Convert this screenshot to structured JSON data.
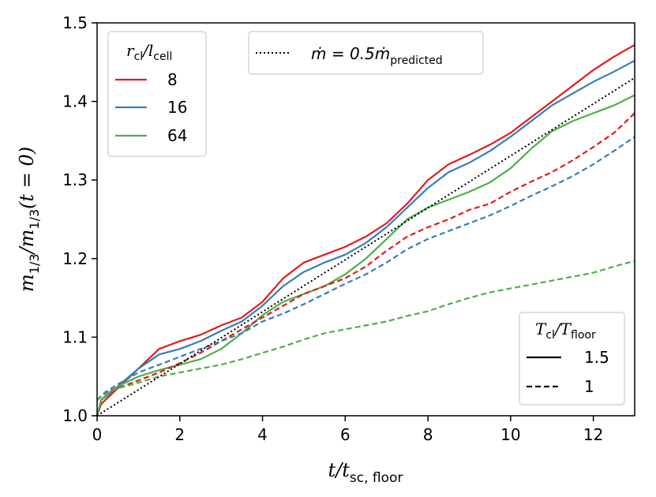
{
  "chart_data": {
    "type": "line",
    "xlabel": "t/t_sc,floor",
    "ylabel": "m_1/3/m_1/3(t=0)",
    "xlim": [
      0,
      13
    ],
    "ylim": [
      1.0,
      1.5
    ],
    "xticks": [
      0,
      2,
      4,
      6,
      8,
      10,
      12
    ],
    "xtick_labels": [
      "0",
      "2",
      "4",
      "6",
      "8",
      "10",
      "12"
    ],
    "yticks": [
      1.0,
      1.1,
      1.2,
      1.3,
      1.4,
      1.5
    ],
    "ytick_labels": [
      "1.0",
      "1.1",
      "1.2",
      "1.3",
      "1.4",
      "1.5"
    ],
    "colors": {
      "r8": "#e41a1c",
      "r16": "#377eb8",
      "r64": "#4daf4a",
      "ref": "#000000"
    },
    "legend_resolution": {
      "title_main": "r",
      "title_sub1": "cl",
      "title_sep": "/l",
      "title_sub2": "cell",
      "entries": [
        {
          "label": "8",
          "color": "#e41a1c"
        },
        {
          "label": "16",
          "color": "#377eb8"
        },
        {
          "label": "64",
          "color": "#4daf4a"
        }
      ]
    },
    "legend_reference": {
      "lhs": "ṁ = 0.5ṁ",
      "sub": "predicted"
    },
    "legend_temperature": {
      "title_main": "T",
      "title_sub1": "cl",
      "title_sep": "/T",
      "title_sub2": "floor",
      "entries": [
        {
          "label": "1.5",
          "style": "solid"
        },
        {
          "label": "1",
          "style": "dashed"
        }
      ]
    },
    "series": [
      {
        "name": "r8 T1.5",
        "color": "#e41a1c",
        "style": "solid",
        "x": [
          0,
          0.1,
          0.3,
          0.6,
          1.0,
          1.5,
          2.0,
          2.5,
          3.0,
          3.5,
          4.0,
          4.5,
          5.0,
          5.5,
          6.0,
          6.5,
          7.0,
          7.5,
          8.0,
          8.5,
          9.0,
          9.5,
          10.0,
          10.5,
          11.0,
          11.5,
          12.0,
          12.5,
          13.0
        ],
        "y": [
          1.0,
          1.015,
          1.025,
          1.04,
          1.06,
          1.085,
          1.095,
          1.103,
          1.115,
          1.125,
          1.145,
          1.175,
          1.195,
          1.205,
          1.215,
          1.228,
          1.245,
          1.27,
          1.3,
          1.32,
          1.332,
          1.345,
          1.36,
          1.38,
          1.4,
          1.42,
          1.44,
          1.457,
          1.472
        ]
      },
      {
        "name": "r16 T1.5",
        "color": "#377eb8",
        "style": "solid",
        "x": [
          0,
          0.1,
          0.3,
          0.6,
          1.0,
          1.5,
          2.0,
          2.5,
          3.0,
          3.5,
          4.0,
          4.5,
          5.0,
          5.5,
          6.0,
          6.5,
          7.0,
          7.5,
          8.0,
          8.5,
          9.0,
          9.5,
          10.0,
          10.5,
          11.0,
          11.5,
          12.0,
          12.5,
          13.0
        ],
        "y": [
          1.0,
          1.02,
          1.028,
          1.042,
          1.06,
          1.078,
          1.085,
          1.095,
          1.108,
          1.12,
          1.14,
          1.165,
          1.183,
          1.195,
          1.205,
          1.22,
          1.24,
          1.265,
          1.29,
          1.31,
          1.322,
          1.337,
          1.355,
          1.375,
          1.395,
          1.41,
          1.425,
          1.438,
          1.452
        ]
      },
      {
        "name": "r64 T1.5",
        "color": "#4daf4a",
        "style": "solid",
        "x": [
          0,
          0.1,
          0.3,
          0.6,
          1.0,
          1.5,
          2.0,
          2.5,
          3.0,
          3.5,
          4.0,
          4.5,
          5.0,
          5.5,
          6.0,
          6.5,
          7.0,
          7.5,
          8.0,
          8.5,
          9.0,
          9.5,
          10.0,
          10.5,
          11.0,
          11.5,
          12.0,
          12.5,
          13.0
        ],
        "y": [
          1.0,
          1.02,
          1.03,
          1.04,
          1.05,
          1.058,
          1.065,
          1.072,
          1.085,
          1.105,
          1.128,
          1.145,
          1.155,
          1.165,
          1.18,
          1.2,
          1.225,
          1.25,
          1.265,
          1.275,
          1.285,
          1.297,
          1.315,
          1.34,
          1.362,
          1.375,
          1.385,
          1.395,
          1.408
        ]
      },
      {
        "name": "r8 T1",
        "color": "#e41a1c",
        "style": "dashed",
        "x": [
          0,
          0.2,
          0.5,
          1.0,
          1.5,
          2.0,
          2.5,
          3.0,
          3.5,
          4.0,
          4.5,
          5.0,
          5.5,
          6.0,
          6.5,
          7.0,
          7.5,
          8.0,
          8.5,
          9.0,
          9.5,
          10.0,
          10.5,
          11.0,
          11.5,
          12.0,
          12.5,
          13.0
        ],
        "y": [
          1.02,
          1.03,
          1.035,
          1.045,
          1.055,
          1.067,
          1.08,
          1.095,
          1.11,
          1.125,
          1.14,
          1.155,
          1.165,
          1.175,
          1.19,
          1.21,
          1.228,
          1.24,
          1.25,
          1.262,
          1.27,
          1.285,
          1.298,
          1.31,
          1.325,
          1.342,
          1.36,
          1.385
        ]
      },
      {
        "name": "r16 T1",
        "color": "#377eb8",
        "style": "dashed",
        "x": [
          0,
          0.2,
          0.5,
          1.0,
          1.5,
          2.0,
          2.5,
          3.0,
          3.5,
          4.0,
          4.5,
          5.0,
          5.5,
          6.0,
          6.5,
          7.0,
          7.5,
          8.0,
          8.5,
          9.0,
          9.5,
          10.0,
          10.5,
          11.0,
          11.5,
          12.0,
          12.5,
          13.0
        ],
        "y": [
          1.02,
          1.03,
          1.04,
          1.055,
          1.065,
          1.075,
          1.085,
          1.095,
          1.105,
          1.12,
          1.13,
          1.142,
          1.155,
          1.168,
          1.18,
          1.195,
          1.212,
          1.225,
          1.235,
          1.245,
          1.255,
          1.267,
          1.28,
          1.292,
          1.305,
          1.32,
          1.337,
          1.355
        ]
      },
      {
        "name": "r64 T1",
        "color": "#4daf4a",
        "style": "dashed",
        "x": [
          0,
          0.2,
          0.5,
          1.0,
          1.5,
          2.0,
          2.5,
          3.0,
          3.5,
          4.0,
          4.5,
          5.0,
          5.5,
          6.0,
          6.5,
          7.0,
          7.5,
          8.0,
          8.5,
          9.0,
          9.5,
          10.0,
          10.5,
          11.0,
          11.5,
          12.0,
          12.5,
          13.0
        ],
        "y": [
          1.02,
          1.028,
          1.035,
          1.042,
          1.05,
          1.055,
          1.06,
          1.065,
          1.072,
          1.08,
          1.088,
          1.097,
          1.105,
          1.11,
          1.115,
          1.12,
          1.127,
          1.133,
          1.142,
          1.15,
          1.157,
          1.162,
          1.167,
          1.172,
          1.177,
          1.182,
          1.19,
          1.197
        ]
      },
      {
        "name": "0.5 predicted",
        "color": "#000000",
        "style": "dotted",
        "x": [
          0,
          13
        ],
        "y": [
          1.0,
          1.43
        ]
      }
    ]
  }
}
